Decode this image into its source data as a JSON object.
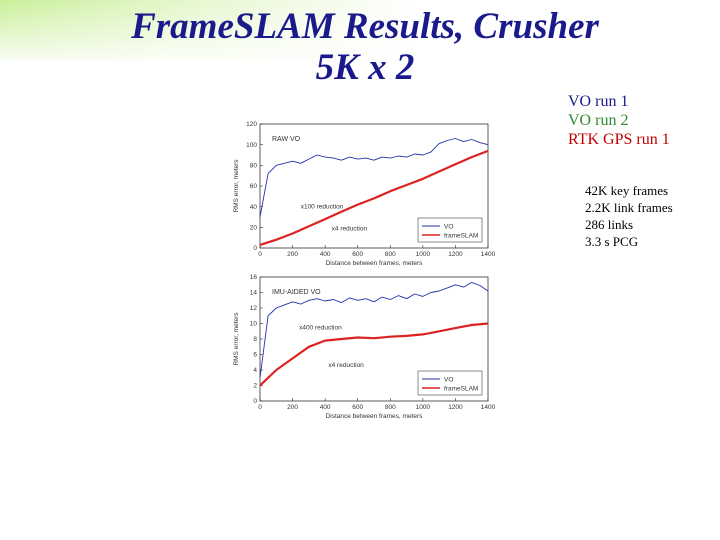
{
  "title": {
    "line1": "FrameSLAM Results, Crusher",
    "line2": "5K x 2"
  },
  "legend": [
    {
      "label": "VO run 1",
      "color": "#1a1a8c"
    },
    {
      "label": "VO run 2",
      "color": "#2e8b2e"
    },
    {
      "label": "RTK GPS run 1",
      "color": "#c00000"
    }
  ],
  "stats": [
    "42K key frames",
    "2.2K link frames",
    "286 links",
    "3.3 s PCG"
  ],
  "chart_data": [
    {
      "type": "line",
      "title": "RAW VO",
      "xlabel": "Distance between frames, meters",
      "ylabel": "RMS error, meters",
      "xlim": [
        0,
        1400
      ],
      "ylim": [
        0,
        120
      ],
      "xticks": [
        0,
        200,
        400,
        600,
        800,
        1000,
        1200,
        1400
      ],
      "yticks": [
        0,
        20,
        40,
        60,
        80,
        100,
        120
      ],
      "annotations": [
        {
          "text": "x100 reduction",
          "x": 250,
          "y": 38
        },
        {
          "text": "x4 reduction",
          "x": 440,
          "y": 17
        }
      ],
      "legend_position": "bottom-right",
      "series": [
        {
          "name": "VO",
          "color": "#2233aa",
          "x": [
            0,
            50,
            100,
            150,
            200,
            250,
            300,
            350,
            400,
            450,
            500,
            550,
            600,
            650,
            700,
            750,
            800,
            850,
            900,
            950,
            1000,
            1050,
            1100,
            1150,
            1200,
            1250,
            1300,
            1350,
            1400
          ],
          "y": [
            30,
            72,
            80,
            82,
            84,
            82,
            86,
            90,
            88,
            87,
            85,
            88,
            86,
            87,
            85,
            88,
            87,
            89,
            88,
            91,
            90,
            93,
            101,
            104,
            106,
            103,
            105,
            102,
            100
          ]
        },
        {
          "name": "frameSLAM",
          "color": "#dd2222",
          "x": [
            0,
            100,
            200,
            300,
            400,
            500,
            600,
            700,
            800,
            900,
            1000,
            1100,
            1200,
            1300,
            1400
          ],
          "y": [
            3,
            8,
            14,
            21,
            28,
            35,
            42,
            48,
            55,
            61,
            67,
            74,
            81,
            88,
            94
          ]
        }
      ]
    },
    {
      "type": "line",
      "title": "IMU-AIDED VO",
      "xlabel": "Distance between frames, meters",
      "ylabel": "RMS error, meters",
      "xlim": [
        0,
        1400
      ],
      "ylim": [
        0,
        16
      ],
      "xticks": [
        0,
        200,
        400,
        600,
        800,
        1000,
        1200,
        1400
      ],
      "yticks": [
        0,
        2,
        4,
        6,
        8,
        10,
        12,
        14,
        16
      ],
      "annotations": [
        {
          "text": "x400 reduction",
          "x": 240,
          "y": 9.2
        },
        {
          "text": "x4 reduction",
          "x": 420,
          "y": 4.4
        }
      ],
      "legend_position": "bottom-right",
      "series": [
        {
          "name": "VO",
          "color": "#2233aa",
          "x": [
            0,
            50,
            100,
            150,
            200,
            250,
            300,
            350,
            400,
            450,
            500,
            550,
            600,
            650,
            700,
            750,
            800,
            850,
            900,
            950,
            1000,
            1050,
            1100,
            1150,
            1200,
            1250,
            1300,
            1350,
            1400
          ],
          "y": [
            3,
            11,
            12,
            12.4,
            12.8,
            12.5,
            13,
            13.2,
            12.9,
            13.1,
            12.7,
            13.3,
            13,
            13.2,
            12.8,
            13.4,
            13.1,
            13.6,
            13.2,
            13.8,
            13.5,
            14,
            14.2,
            14.6,
            15,
            14.7,
            15.3,
            14.9,
            14.2
          ]
        },
        {
          "name": "frameSLAM",
          "color": "#dd2222",
          "x": [
            0,
            100,
            200,
            300,
            400,
            500,
            600,
            700,
            800,
            900,
            1000,
            1100,
            1200,
            1300,
            1400
          ],
          "y": [
            2,
            4,
            5.5,
            7,
            7.8,
            8,
            8.2,
            8.1,
            8.3,
            8.4,
            8.6,
            9,
            9.4,
            9.8,
            10
          ]
        }
      ]
    }
  ]
}
